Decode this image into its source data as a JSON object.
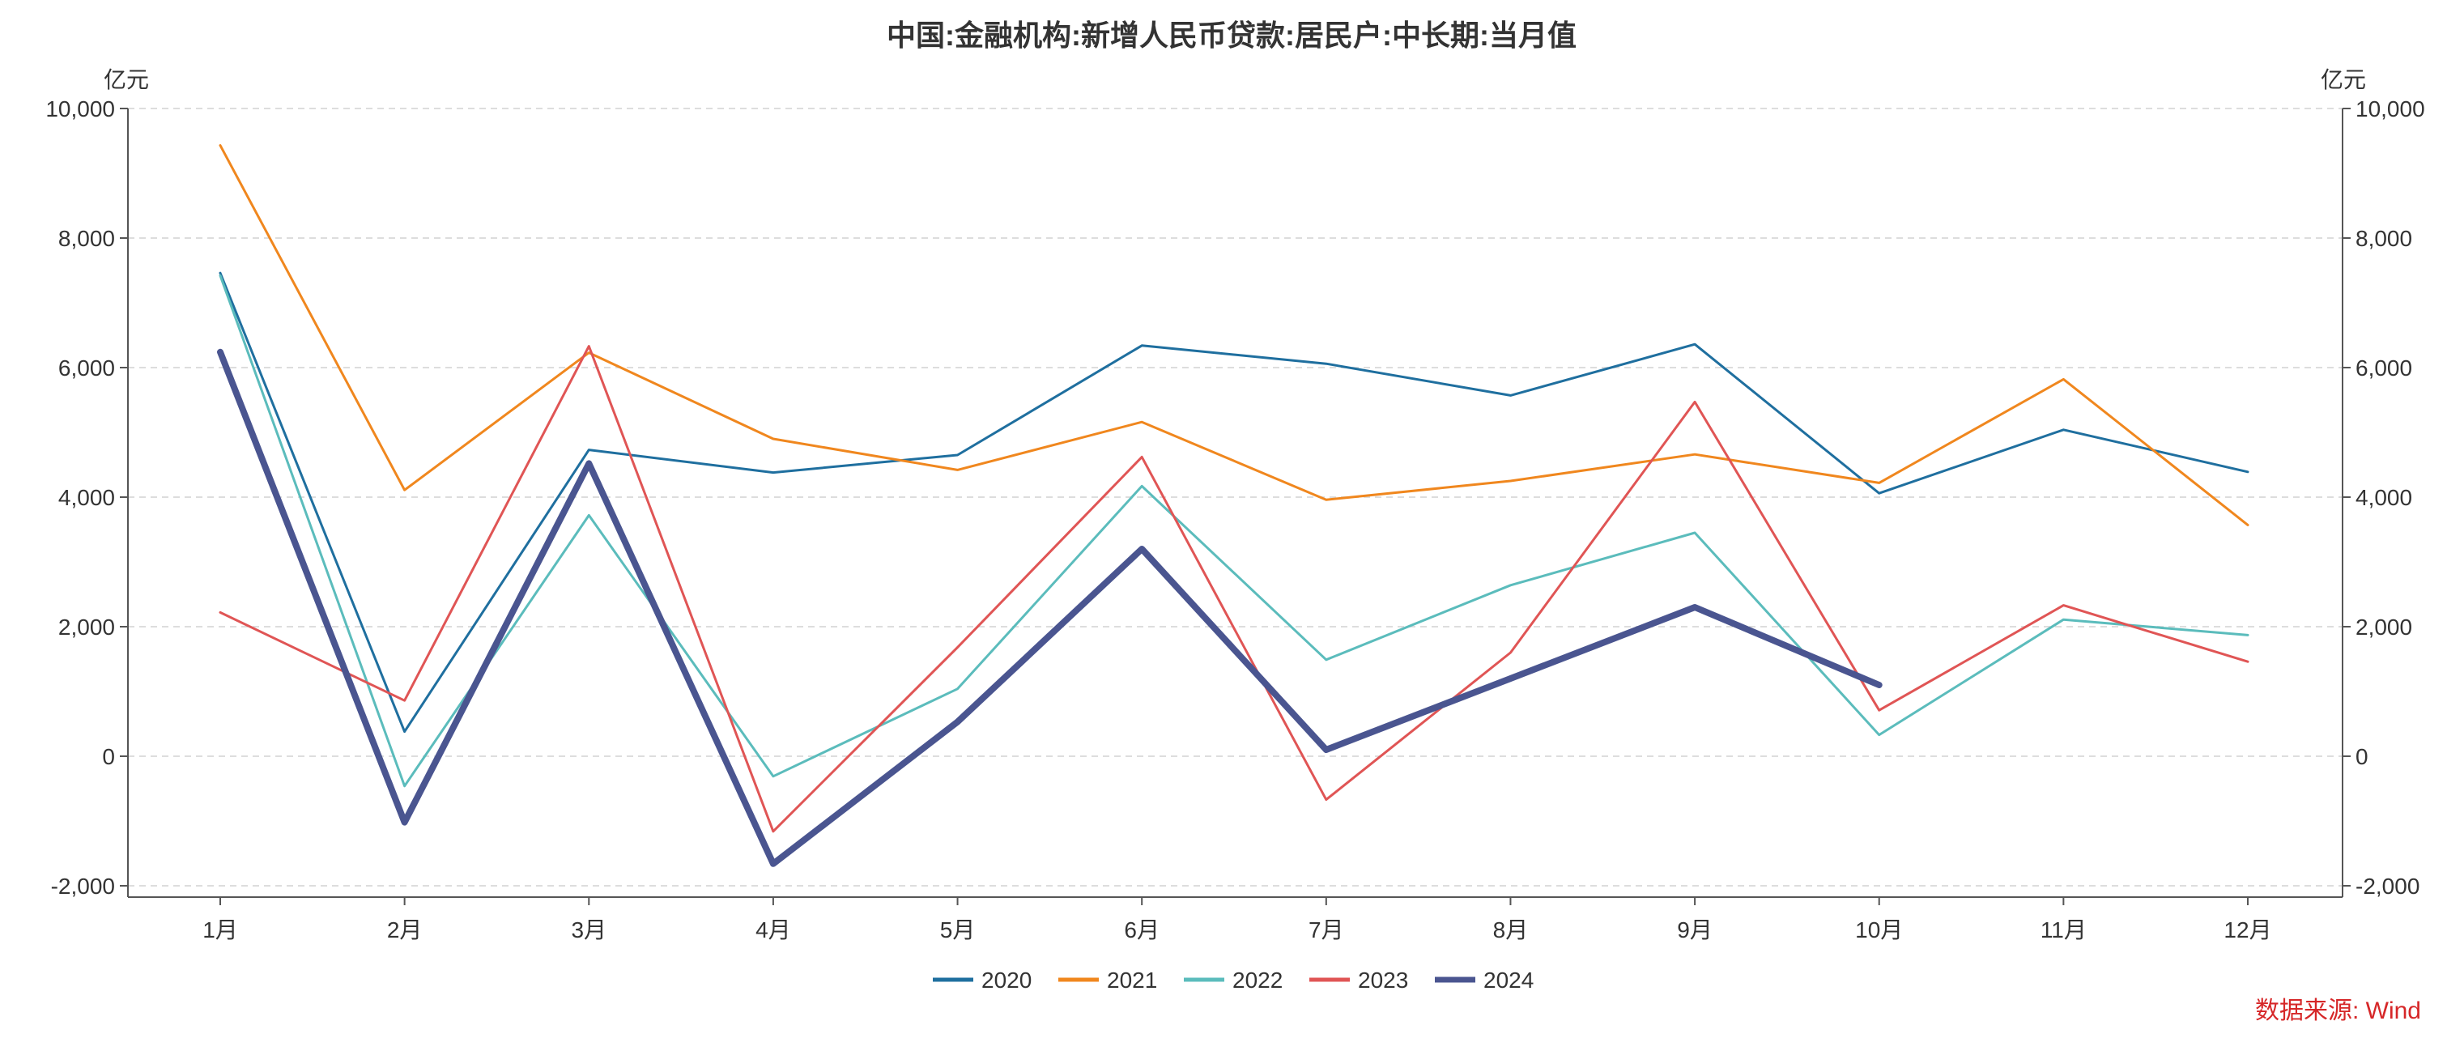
{
  "chart_data": {
    "type": "line",
    "title": "中国:金融机构:新增人民币贷款:居民户:中长期:当月值",
    "y_unit_left": "亿元",
    "y_unit_right": "亿元",
    "categories": [
      "1月",
      "2月",
      "3月",
      "4月",
      "5月",
      "6月",
      "7月",
      "8月",
      "9月",
      "10月",
      "11月",
      "12月"
    ],
    "ylim": [
      -2000,
      10000
    ],
    "y_ticks": [
      10000,
      8000,
      6000,
      4000,
      2000,
      0,
      -2000
    ],
    "y_tick_labels": [
      "10,000",
      "8,000",
      "6,000",
      "4,000",
      "2,000",
      "0",
      "-2,000"
    ],
    "grid": true,
    "legend_position": "bottom",
    "source_note": "数据来源: Wind",
    "series": [
      {
        "name": "2020",
        "color": "#1f6f9f",
        "width": 3,
        "values": [
          7460,
          380,
          4730,
          4380,
          4650,
          6340,
          6060,
          5570,
          6360,
          4060,
          5040,
          4390
        ]
      },
      {
        "name": "2021",
        "color": "#f0871e",
        "width": 3,
        "values": [
          9430,
          4110,
          6230,
          4900,
          4420,
          5160,
          3960,
          4250,
          4660,
          4220,
          5820,
          3570
        ]
      },
      {
        "name": "2022",
        "color": "#5bbcbc",
        "width": 3,
        "values": [
          7420,
          -460,
          3720,
          -310,
          1040,
          4170,
          1490,
          2640,
          3450,
          330,
          2110,
          1870
        ]
      },
      {
        "name": "2023",
        "color": "#e05555",
        "width": 3,
        "values": [
          2220,
          860,
          6330,
          -1160,
          1680,
          4620,
          -670,
          1600,
          5470,
          710,
          2330,
          1460
        ]
      },
      {
        "name": "2024",
        "color": "#4a5590",
        "width": 8,
        "values": [
          6240,
          -1020,
          4520,
          -1660,
          530,
          3200,
          100,
          1200,
          2300,
          1100,
          null,
          null
        ]
      }
    ]
  }
}
